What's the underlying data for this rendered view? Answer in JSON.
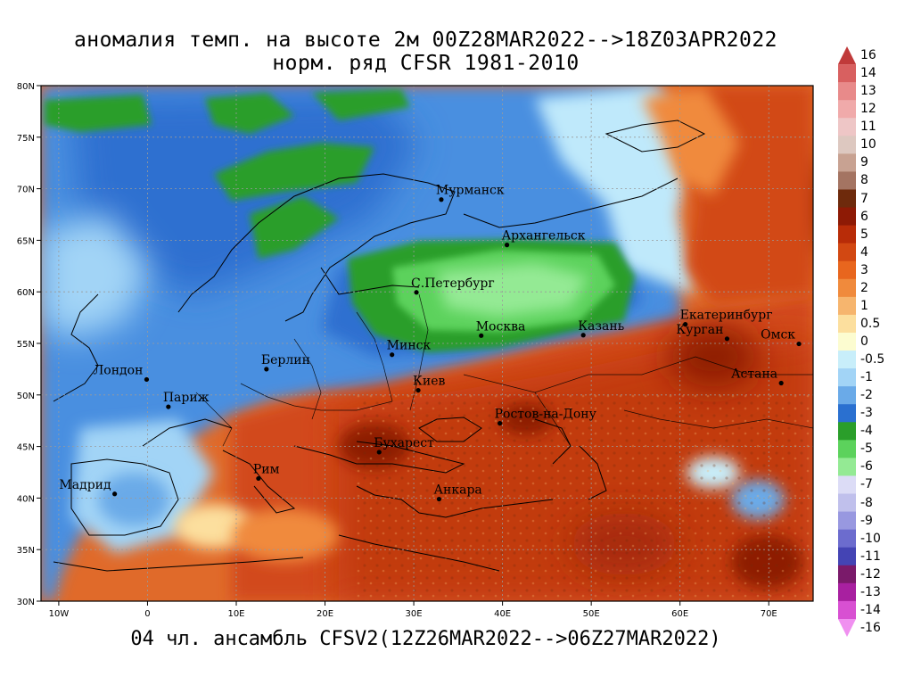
{
  "title": {
    "line1": "аномалия темп. на высоте 2м 00Z28MAR2022-->18Z03APR2022",
    "line2": "норм. ряд CFSR 1981-2010"
  },
  "footer": "04 чл. ансамбль CFSV2(12Z26MAR2022-->06Z27MAR2022)",
  "map": {
    "lon_range": [
      -12,
      75
    ],
    "lat_range": [
      30,
      80
    ],
    "lon_ticks": [
      {
        "value": -10,
        "label": "10W"
      },
      {
        "value": 0,
        "label": "0"
      },
      {
        "value": 10,
        "label": "10E"
      },
      {
        "value": 20,
        "label": "20E"
      },
      {
        "value": 30,
        "label": "30E"
      },
      {
        "value": 40,
        "label": "40E"
      },
      {
        "value": 50,
        "label": "50E"
      },
      {
        "value": 60,
        "label": "60E"
      },
      {
        "value": 70,
        "label": "70E"
      }
    ],
    "lat_ticks": [
      {
        "value": 30,
        "label": "30N"
      },
      {
        "value": 35,
        "label": "35N"
      },
      {
        "value": 40,
        "label": "40N"
      },
      {
        "value": 45,
        "label": "45N"
      },
      {
        "value": 50,
        "label": "50N"
      },
      {
        "value": 55,
        "label": "55N"
      },
      {
        "value": 60,
        "label": "60N"
      },
      {
        "value": 65,
        "label": "65N"
      },
      {
        "value": 70,
        "label": "70N"
      },
      {
        "value": 75,
        "label": "75N"
      },
      {
        "value": 80,
        "label": "80N"
      }
    ],
    "cities": [
      {
        "name": "Мурманск",
        "lon": 33.1,
        "lat": 68.95
      },
      {
        "name": "Архангельск",
        "lon": 40.5,
        "lat": 64.55
      },
      {
        "name": "С.Петербург",
        "lon": 30.3,
        "lat": 59.95
      },
      {
        "name": "Москва",
        "lon": 37.6,
        "lat": 55.75
      },
      {
        "name": "Казань",
        "lon": 49.1,
        "lat": 55.8
      },
      {
        "name": "Екатеринбург",
        "lon": 60.6,
        "lat": 56.85
      },
      {
        "name": "Курган",
        "lon": 65.3,
        "lat": 55.45
      },
      {
        "name": "Омск",
        "lon": 73.4,
        "lat": 54.95
      },
      {
        "name": "Астана",
        "lon": 71.4,
        "lat": 51.15
      },
      {
        "name": "Минск",
        "lon": 27.55,
        "lat": 53.9
      },
      {
        "name": "Берлин",
        "lon": 13.4,
        "lat": 52.5
      },
      {
        "name": "Лондон",
        "lon": -0.1,
        "lat": 51.5
      },
      {
        "name": "Париж",
        "lon": 2.35,
        "lat": 48.85
      },
      {
        "name": "Киев",
        "lon": 30.5,
        "lat": 50.45
      },
      {
        "name": "Ростов-на-Дону",
        "lon": 39.7,
        "lat": 47.25
      },
      {
        "name": "Бухарест",
        "lon": 26.1,
        "lat": 44.45
      },
      {
        "name": "Рим",
        "lon": 12.5,
        "lat": 41.9
      },
      {
        "name": "Мадрид",
        "lon": -3.7,
        "lat": 40.4
      },
      {
        "name": "Анкара",
        "lon": 32.85,
        "lat": 39.9
      }
    ]
  },
  "colorbar": {
    "labels": [
      "16",
      "14",
      "13",
      "12",
      "11",
      "10",
      "9",
      "8",
      "7",
      "6",
      "5",
      "4",
      "3",
      "2",
      "1",
      "0.5",
      "0",
      "-0.5",
      "-1",
      "-2",
      "-3",
      "-4",
      "-5",
      "-6",
      "-7",
      "-8",
      "-9",
      "-10",
      "-11",
      "-12",
      "-13",
      "-14",
      "-16"
    ],
    "colors": [
      "#c03a3a",
      "#d86060",
      "#e88a8a",
      "#f0aaaa",
      "#eec6c6",
      "#ddc8c0",
      "#c8a292",
      "#a47462",
      "#6e2a0c",
      "#8e1a05",
      "#b82c08",
      "#d24812",
      "#e8661e",
      "#f08a3c",
      "#f6b56e",
      "#fcdf9e",
      "#fcfcd0",
      "#c8eefa",
      "#a2d4f6",
      "#6aaae8",
      "#2a70d0",
      "#2a9e2a",
      "#5cd25c",
      "#94ea94",
      "#dcdcf6",
      "#c0c0ec",
      "#9898e0",
      "#6c6cce",
      "#4444b4",
      "#7a1a6a",
      "#a820a0",
      "#d850d2",
      "#f090f0"
    ],
    "levels": [
      16,
      14,
      13,
      12,
      11,
      10,
      9,
      8,
      7,
      6,
      5,
      4,
      3,
      2,
      1,
      0.5,
      0,
      -0.5,
      -1,
      -2,
      -3,
      -4,
      -5,
      -6,
      -7,
      -8,
      -9,
      -10,
      -11,
      -12,
      -13,
      -14,
      -16
    ]
  }
}
